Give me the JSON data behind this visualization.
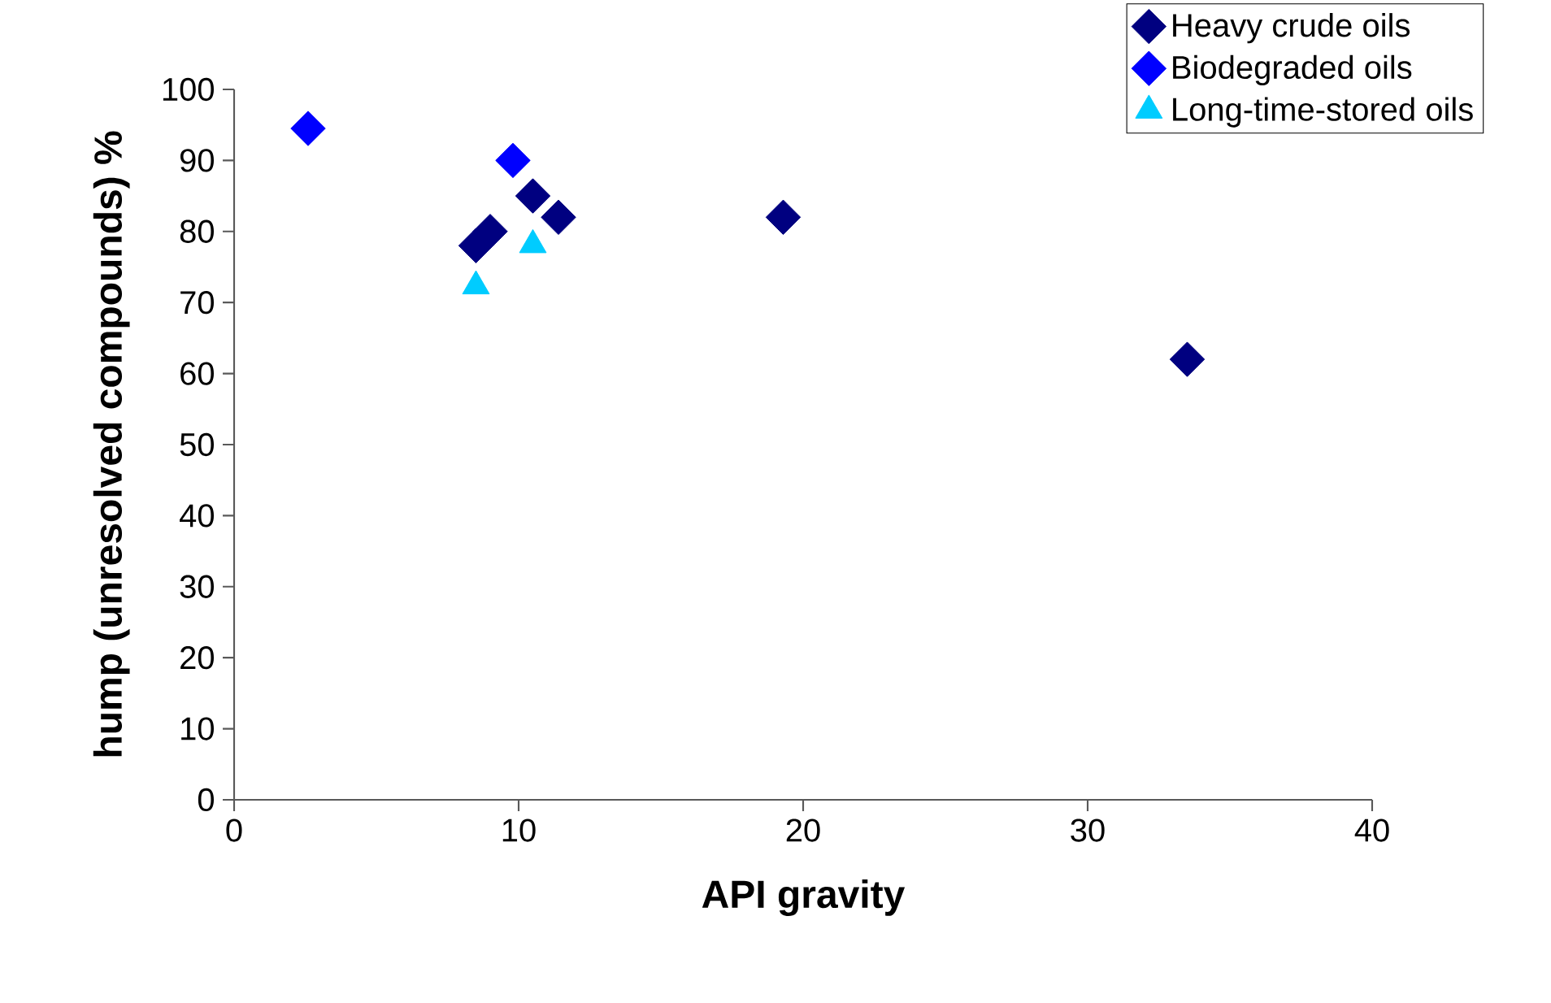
{
  "chart_data": {
    "type": "scatter",
    "xlabel": "API gravity",
    "ylabel": "hump (unresolved compounds) %",
    "xlim": [
      0,
      40
    ],
    "xticks": [
      0,
      10,
      20,
      30,
      40
    ],
    "ylim": [
      0,
      100
    ],
    "yticks": [
      0,
      10,
      20,
      30,
      40,
      50,
      60,
      70,
      80,
      90,
      100
    ],
    "grid": false,
    "legend": "top right",
    "series": [
      {
        "name": "Heavy crude oils",
        "color": "#000080",
        "marker": "diamond",
        "x": [
          8.5,
          9.0,
          10.5,
          11.4,
          19.3,
          33.5
        ],
        "values": [
          78,
          80,
          85,
          82,
          82,
          62
        ]
      },
      {
        "name": "Biodegraded oils",
        "color": "#0000ff",
        "marker": "diamond",
        "x": [
          2.6,
          9.8
        ],
        "values": [
          94.5,
          90
        ]
      },
      {
        "name": "Long-time-stored oils",
        "color": "#00ccff",
        "marker": "triangle",
        "x": [
          8.5,
          10.5
        ],
        "values": [
          72.3,
          78.1
        ]
      }
    ]
  }
}
